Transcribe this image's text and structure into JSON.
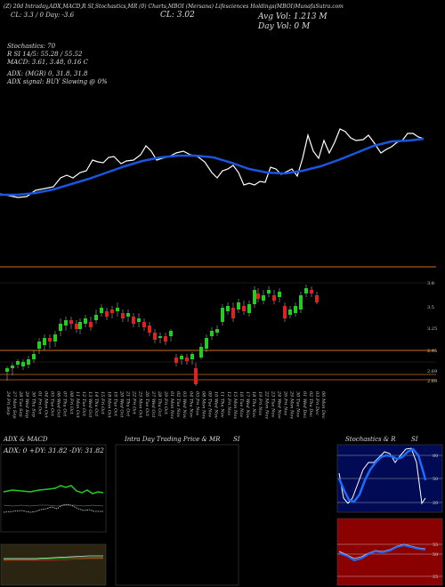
{
  "header": {
    "top_line": "(Z) 20d Intraday,ADX,MACD,R    SI,Stochastics,MR    (0) Charts,MBOI      (Mersana) Lifesciences Holdings(MBOI)MunafaSutra.com",
    "day_change": "CL: 3.3 / 0 Day: -3.6",
    "close": "CL: 3.02",
    "avg_vol": "Avg Vol: 1.213 M",
    "day_vol": "Day Vol: 0   M"
  },
  "indicators": {
    "stochastics": "Stochastics: 70",
    "rsi": "R          SI 14/5: 55.28 / 55.52",
    "macd": "MACD: 3.61, 3.48, 0.16  C",
    "adx": "ADX:                              (MGR) 0, 31.8, 31.8",
    "adx_signal": "ADX  signal:                               BUY Slowing @ 0%"
  },
  "price_axis": [
    "3.8",
    "3.5",
    "3.25",
    "2.95",
    "2.69",
    "2.69"
  ],
  "x_dates": [
    "24 Fri Sep",
    "27 Mon Sep",
    "28 Tue Sep",
    "29 Wed Sep",
    "30 Thu Sep",
    "01 Fri Oct",
    "04 Mon Oct",
    "05 Tue Oct",
    "06 Wed Oct",
    "07 Thu Oct",
    "08 Fri Oct",
    "11 Mon Oct",
    "12 Tue Oct",
    "13 Wed Oct",
    "14 Thu Oct",
    "15 Fri Oct",
    "18 Mon Oct",
    "19 Tue Oct",
    "20 Wed Oct",
    "21 Thu Oct",
    "22 Fri Oct",
    "25 Mon Oct",
    "26 Tue Oct",
    "27 Wed Oct",
    "28 Thu Oct",
    "29 Fri Oct",
    "01 Mon Nov",
    "02 Tue Nov",
    "03 Wed Nov",
    "04 Thu Nov",
    "05 Fri Nov",
    "08 Mon Nov",
    "09 Tue Nov",
    "10 Wed Nov",
    "11 Thu Nov",
    "12 Fri Nov",
    "15 Mon Nov",
    "16 Tue Nov",
    "17 Wed Nov",
    "18 Thu Nov",
    "19 Fri Nov",
    "22 Mon Nov",
    "23 Tue Nov",
    "24 Wed Nov",
    "26 Fri Nov",
    "29 Mon Nov",
    "30 Tue Nov",
    "01 Wed Dec",
    "02 Thu Dec",
    "03 Fri Dec",
    "06 Mon Dec"
  ],
  "panels": {
    "adx_title": "ADX  & MACD",
    "adx_values": "ADX: 0   +DY: 31.82   -DY: 31.82",
    "intraday_title": "Intra  Day Trading Price  & MR",
    "intraday_si": "SI",
    "stoch_title": "Stochastics & R",
    "stoch_si": "SI",
    "stoch_axis": [
      "80",
      "50",
      "20"
    ],
    "rsi_axis": [
      "55",
      "50",
      "25"
    ]
  },
  "colors": {
    "up": "#22cc22",
    "down": "#dd2222",
    "ema": "#1a55e0",
    "orange": "#c87020"
  }
}
